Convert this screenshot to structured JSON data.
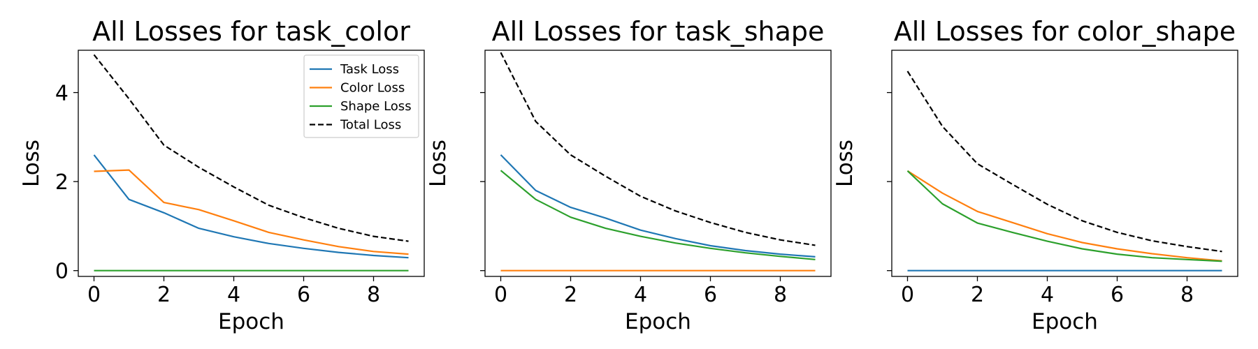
{
  "chart_data": [
    {
      "type": "line",
      "title": "All Losses for task_color",
      "xlabel": "Epoch",
      "ylabel": "Loss",
      "xlim": [
        -0.45,
        9.45
      ],
      "ylim": [
        -0.13,
        4.95
      ],
      "xticks": [
        0,
        2,
        4,
        6,
        8
      ],
      "yticks": [
        0,
        2,
        4
      ],
      "show_yticklabels": true,
      "legend": "top-right",
      "x": [
        0,
        1,
        2,
        3,
        4,
        5,
        6,
        7,
        8,
        9
      ],
      "series": [
        {
          "name": "Task Loss",
          "color": "#1f77b4",
          "dash": "solid",
          "values": [
            2.6,
            1.6,
            1.3,
            0.95,
            0.76,
            0.61,
            0.5,
            0.41,
            0.34,
            0.29
          ]
        },
        {
          "name": "Color Loss",
          "color": "#ff7f0e",
          "dash": "solid",
          "values": [
            2.23,
            2.26,
            1.53,
            1.37,
            1.12,
            0.86,
            0.69,
            0.54,
            0.43,
            0.37
          ]
        },
        {
          "name": "Shape Loss",
          "color": "#2ca02c",
          "dash": "solid",
          "values": [
            0,
            0,
            0,
            0,
            0,
            0,
            0,
            0,
            0,
            0
          ]
        },
        {
          "name": "Total Loss",
          "color": "#000000",
          "dash": "dashed",
          "values": [
            4.85,
            3.86,
            2.82,
            2.32,
            1.88,
            1.47,
            1.19,
            0.95,
            0.77,
            0.66
          ]
        }
      ]
    },
    {
      "type": "line",
      "title": "All Losses for task_shape",
      "xlabel": "Epoch",
      "ylabel": "Loss",
      "xlim": [
        -0.45,
        9.45
      ],
      "ylim": [
        -0.13,
        4.95
      ],
      "xticks": [
        0,
        2,
        4,
        6,
        8
      ],
      "yticks": [
        0,
        2,
        4
      ],
      "show_yticklabels": false,
      "legend": "",
      "x": [
        0,
        1,
        2,
        3,
        4,
        5,
        6,
        7,
        8,
        9
      ],
      "series": [
        {
          "name": "Task Loss",
          "color": "#1f77b4",
          "dash": "solid",
          "values": [
            2.6,
            1.8,
            1.42,
            1.18,
            0.91,
            0.72,
            0.56,
            0.45,
            0.37,
            0.31
          ]
        },
        {
          "name": "Color Loss",
          "color": "#ff7f0e",
          "dash": "solid",
          "values": [
            0,
            0,
            0,
            0,
            0,
            0,
            0,
            0,
            0,
            0
          ]
        },
        {
          "name": "Shape Loss",
          "color": "#2ca02c",
          "dash": "solid",
          "values": [
            2.25,
            1.6,
            1.2,
            0.95,
            0.77,
            0.62,
            0.5,
            0.4,
            0.32,
            0.25
          ]
        },
        {
          "name": "Total Loss",
          "color": "#000000",
          "dash": "dashed",
          "values": [
            4.9,
            3.35,
            2.6,
            2.12,
            1.67,
            1.34,
            1.08,
            0.86,
            0.69,
            0.57
          ]
        }
      ]
    },
    {
      "type": "line",
      "title": "All Losses for color_shape",
      "xlabel": "Epoch",
      "ylabel": "Loss",
      "xlim": [
        -0.45,
        9.45
      ],
      "ylim": [
        -0.13,
        4.95
      ],
      "xticks": [
        0,
        2,
        4,
        6,
        8
      ],
      "yticks": [
        0,
        2,
        4
      ],
      "show_yticklabels": false,
      "legend": "",
      "x": [
        0,
        1,
        2,
        3,
        4,
        5,
        6,
        7,
        8,
        9
      ],
      "series": [
        {
          "name": "Task Loss",
          "color": "#1f77b4",
          "dash": "solid",
          "values": [
            0,
            0,
            0,
            0,
            0,
            0,
            0,
            0,
            0,
            0
          ]
        },
        {
          "name": "Color Loss",
          "color": "#ff7f0e",
          "dash": "solid",
          "values": [
            2.24,
            1.74,
            1.33,
            1.08,
            0.83,
            0.63,
            0.49,
            0.38,
            0.29,
            0.22
          ]
        },
        {
          "name": "Shape Loss",
          "color": "#2ca02c",
          "dash": "solid",
          "values": [
            2.24,
            1.5,
            1.07,
            0.86,
            0.66,
            0.49,
            0.37,
            0.29,
            0.25,
            0.21
          ]
        },
        {
          "name": "Total Loss",
          "color": "#000000",
          "dash": "dashed",
          "values": [
            4.48,
            3.24,
            2.4,
            1.94,
            1.49,
            1.12,
            0.86,
            0.67,
            0.54,
            0.43
          ]
        }
      ]
    }
  ]
}
